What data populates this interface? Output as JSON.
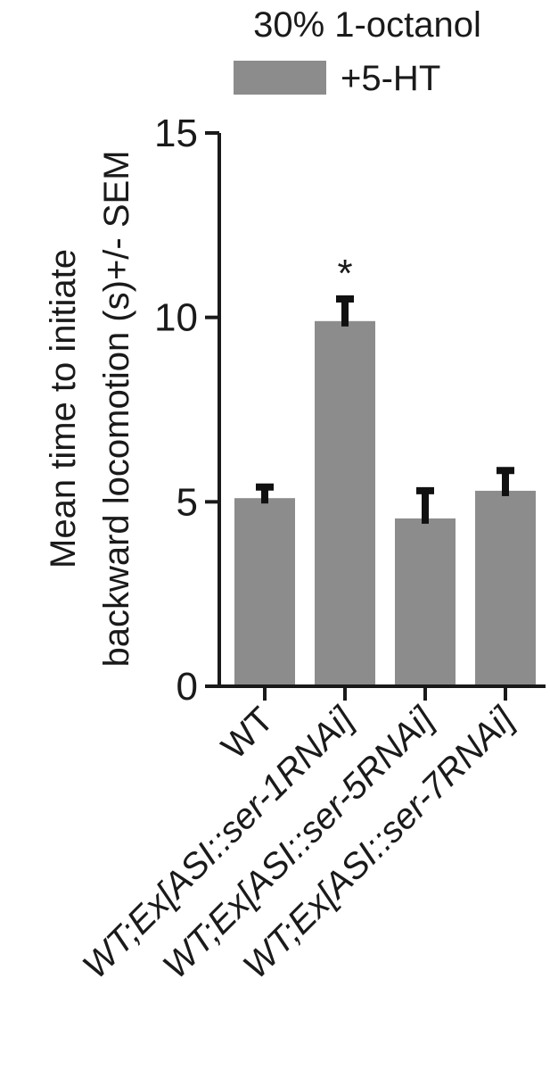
{
  "chart_data": {
    "type": "bar",
    "title": "",
    "legend": {
      "heading": "30% 1-octanol",
      "entries": [
        {
          "label": "+5-HT",
          "color": "#8c8c8c"
        }
      ],
      "placement": "top"
    },
    "ylabel_lines": [
      "Mean time to initiate",
      "backward locomotion (s)+/- SEM"
    ],
    "xlabel": "",
    "ylim": [
      0,
      15
    ],
    "yticks": [
      0,
      5,
      10,
      15
    ],
    "grid": false,
    "categories": [
      {
        "parts": [
          {
            "text": "WT",
            "italic": false
          }
        ]
      },
      {
        "parts": [
          {
            "text": "WT;Ex[ASI::ser-1RNAi]",
            "italic": true
          }
        ]
      },
      {
        "parts": [
          {
            "text": "WT;Ex[ASI::ser-5RNAi]",
            "italic": true
          }
        ]
      },
      {
        "parts": [
          {
            "text": "WT;Ex[ASI::ser-7RNAi]",
            "italic": true
          }
        ]
      }
    ],
    "series": [
      {
        "name": "+5-HT",
        "color": "#8c8c8c",
        "values": [
          5.1,
          9.9,
          4.55,
          5.3
        ],
        "sem": [
          0.3,
          0.6,
          0.75,
          0.55
        ]
      }
    ],
    "annotations": [
      {
        "category_index": 1,
        "text": "*"
      }
    ]
  }
}
